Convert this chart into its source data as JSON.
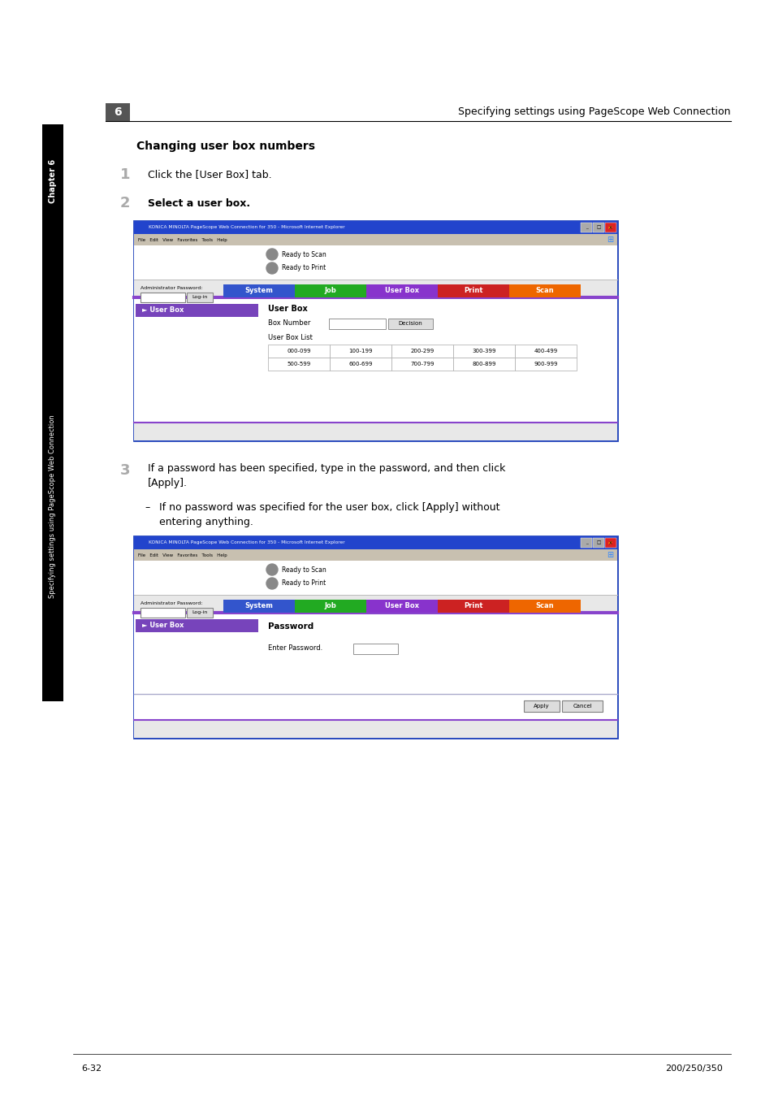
{
  "bg_color": "#ffffff",
  "header_text": "Specifying settings using PageScope Web Connection",
  "header_chapter_num": "6",
  "footer_left": "6-32",
  "footer_right": "200/250/350",
  "section_title": "Changing user box numbers",
  "step1_num": "1",
  "step1_text": "Click the [User Box] tab.",
  "step2_num": "2",
  "step2_text": "Select a user box.",
  "step3_num": "3",
  "step3_line1": "If a password has been specified, type in the password, and then click",
  "step3_line2": "[Apply].",
  "step3_sub1": "If no password was specified for the user box, click [Apply] without",
  "step3_sub2": "entering anything.",
  "sidebar_text": "Specifying settings using PageScope Web Connection",
  "sidebar_chapter": "Chapter 6",
  "browser_title": "KONICA MINOLTA PageScope Web Connection for 350 - Microsoft Internet Explorer",
  "browser_menu": "File   Edit   View   Favorites   Tools   Help",
  "ready_scan": "Ready to Scan",
  "ready_print": "Ready to Print",
  "admin_label": "Administrator Password:",
  "login_btn": "Log-in",
  "nav_system": "System",
  "nav_job": "Job",
  "nav_userbox": "User Box",
  "nav_print": "Print",
  "nav_scan": "Scan",
  "userbox_label": "User Box",
  "box_number_label": "Box Number",
  "decision_btn": "Decision",
  "userbox_list_label": "User Box List",
  "box_ranges_row1": [
    "000-099",
    "100-199",
    "200-299",
    "300-399",
    "400-499"
  ],
  "box_ranges_row2": [
    "500-599",
    "600-699",
    "700-799",
    "800-899",
    "900-999"
  ],
  "password_label": "Password",
  "enter_password_label": "Enter Password.",
  "apply_btn": "Apply",
  "cancel_btn": "Cancel",
  "nav_color_system": "#3355cc",
  "nav_color_job": "#22aa22",
  "nav_color_userbox": "#8833cc",
  "nav_color_print": "#cc2222",
  "nav_color_scan": "#ee6600",
  "userbox_sidebar_color": "#7744bb",
  "browser_titlebar_color": "#2244cc",
  "purple_line_color": "#8844cc",
  "browser_border_color": "#2244bb",
  "content_bg": "#e8e8e8",
  "menubar_bg": "#c8c0b0"
}
